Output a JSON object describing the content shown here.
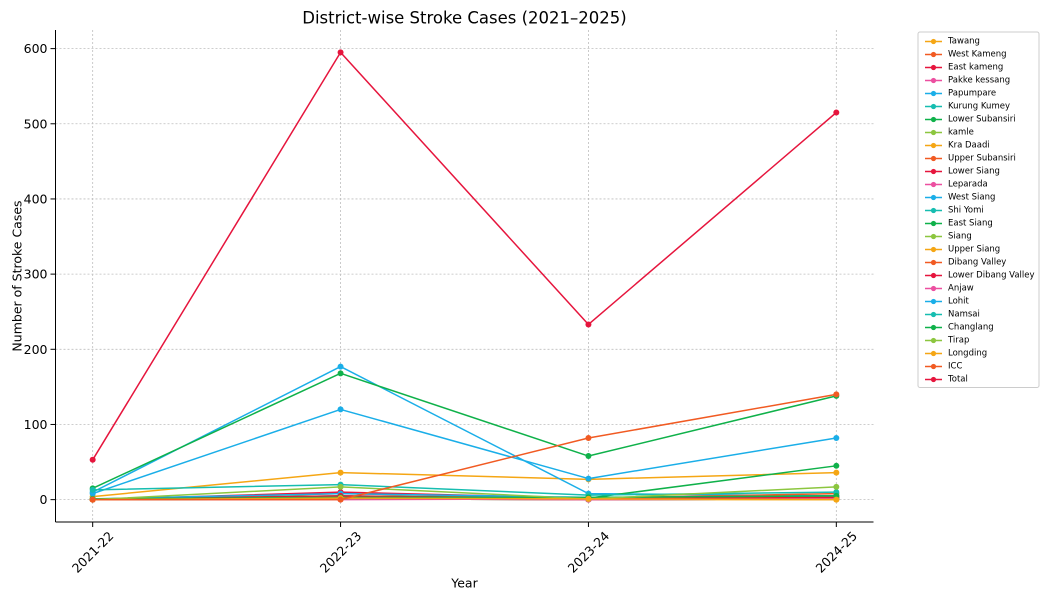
{
  "chart_data": {
    "type": "line",
    "title": "District-wise Stroke Cases (2021–2025)",
    "xlabel": "Year",
    "ylabel": "Number of Stroke Cases",
    "categories": [
      "2021-22",
      "2022-23",
      "2023-24",
      "2024-25"
    ],
    "yticks": [
      0,
      100,
      200,
      300,
      400,
      500,
      600
    ],
    "ylim": [
      -29.75,
      624.75
    ],
    "grid": true,
    "legend_position": "upper-right-outside",
    "series": [
      {
        "name": "Tawang",
        "color": "#F5A614",
        "values": [
          4,
          36,
          27,
          36
        ]
      },
      {
        "name": "West Kameng",
        "color": "#F15A22",
        "values": [
          0,
          2,
          1,
          3
        ]
      },
      {
        "name": "East kameng",
        "color": "#E6153D",
        "values": [
          0,
          1,
          2,
          1
        ]
      },
      {
        "name": "Pakke kessang",
        "color": "#EC4FA0",
        "values": [
          0,
          0,
          1,
          1
        ]
      },
      {
        "name": "Papumpare",
        "color": "#1AAEE8",
        "values": [
          10,
          177,
          8,
          5
        ]
      },
      {
        "name": "Kurung Kumey",
        "color": "#16BDB0",
        "values": [
          0,
          1,
          0,
          1
        ]
      },
      {
        "name": "Lower Subansiri",
        "color": "#0FB14A",
        "values": [
          1,
          5,
          2,
          45
        ]
      },
      {
        "name": "kamle",
        "color": "#8CC63F",
        "values": [
          0,
          1,
          1,
          2
        ]
      },
      {
        "name": "Kra Daadi",
        "color": "#F5A614",
        "values": [
          0,
          1,
          0,
          0
        ]
      },
      {
        "name": "Upper Subansiri",
        "color": "#F15A22",
        "values": [
          0,
          8,
          2,
          8
        ]
      },
      {
        "name": "Lower Siang",
        "color": "#E6153D",
        "values": [
          0,
          10,
          2,
          3
        ]
      },
      {
        "name": "Leparada",
        "color": "#EC4FA0",
        "values": [
          0,
          2,
          1,
          2
        ]
      },
      {
        "name": "West Siang",
        "color": "#1AAEE8",
        "values": [
          1,
          8,
          3,
          5
        ]
      },
      {
        "name": "Shi Yomi",
        "color": "#16BDB0",
        "values": [
          0,
          1,
          0,
          1
        ]
      },
      {
        "name": "East Siang",
        "color": "#0FB14A",
        "values": [
          15,
          168,
          58,
          138
        ]
      },
      {
        "name": "Siang",
        "color": "#8CC63F",
        "values": [
          0,
          2,
          1,
          3
        ]
      },
      {
        "name": "Upper Siang",
        "color": "#F5A614",
        "values": [
          0,
          3,
          2,
          2
        ]
      },
      {
        "name": "Dibang Valley",
        "color": "#F15A22",
        "values": [
          0,
          1,
          0,
          1
        ]
      },
      {
        "name": "Lower Dibang Valley",
        "color": "#E6153D",
        "values": [
          0,
          5,
          1,
          3
        ]
      },
      {
        "name": "Anjaw",
        "color": "#EC4FA0",
        "values": [
          0,
          1,
          0,
          1
        ]
      },
      {
        "name": "Lohit",
        "color": "#1AAEE8",
        "values": [
          8,
          120,
          28,
          82
        ]
      },
      {
        "name": "Namsai",
        "color": "#16BDB0",
        "values": [
          13,
          20,
          6,
          10
        ]
      },
      {
        "name": "Changlang",
        "color": "#0FB14A",
        "values": [
          1,
          3,
          3,
          5
        ]
      },
      {
        "name": "Tirap",
        "color": "#8CC63F",
        "values": [
          0,
          17,
          1,
          17
        ]
      },
      {
        "name": "Longding",
        "color": "#F5A614",
        "values": [
          0,
          2,
          1,
          0
        ]
      },
      {
        "name": "ICC",
        "color": "#F15A22",
        "values": [
          0,
          0,
          82,
          140
        ]
      },
      {
        "name": "Total",
        "color": "#E6153D",
        "values": [
          53,
          595,
          233,
          515
        ]
      }
    ]
  }
}
